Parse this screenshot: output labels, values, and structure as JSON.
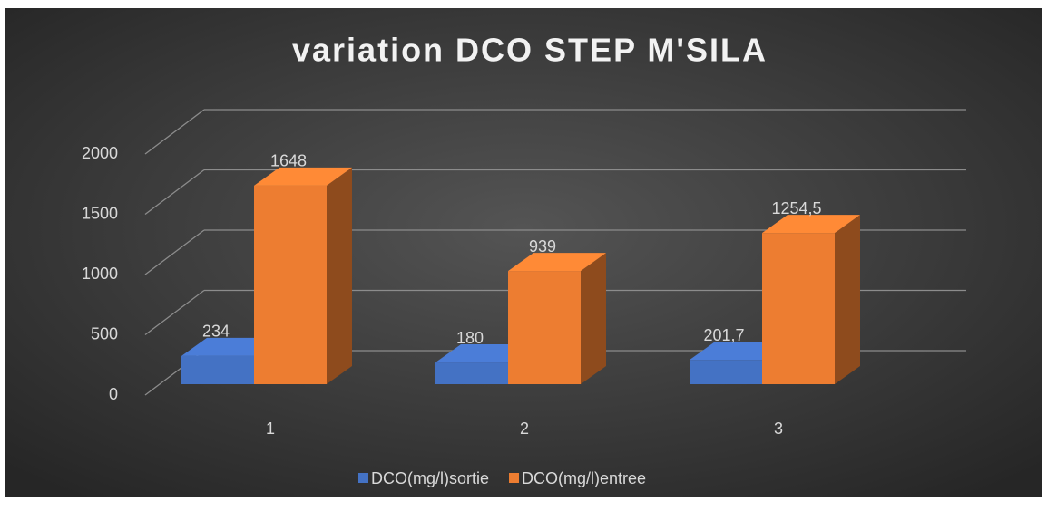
{
  "chart_data": {
    "type": "bar3d",
    "title": "variation DCO STEP M'SILA",
    "categories": [
      "1",
      "2",
      "3"
    ],
    "series": [
      {
        "name": "DCO(mg/l)sortie",
        "color": "#4472c4",
        "values": [
          234,
          180,
          201.7
        ],
        "value_labels": [
          "234",
          "180",
          "201,7"
        ]
      },
      {
        "name": "DCO(mg/l)entree",
        "color": "#ed7d31",
        "values": [
          1648,
          939,
          1254.5
        ],
        "value_labels": [
          "1648",
          "939",
          "1254,5"
        ]
      }
    ],
    "ylim": [
      0,
      2000
    ],
    "yticks": [
      0,
      500,
      1000,
      1500,
      2000
    ],
    "grid": true,
    "legend": "bottom"
  }
}
